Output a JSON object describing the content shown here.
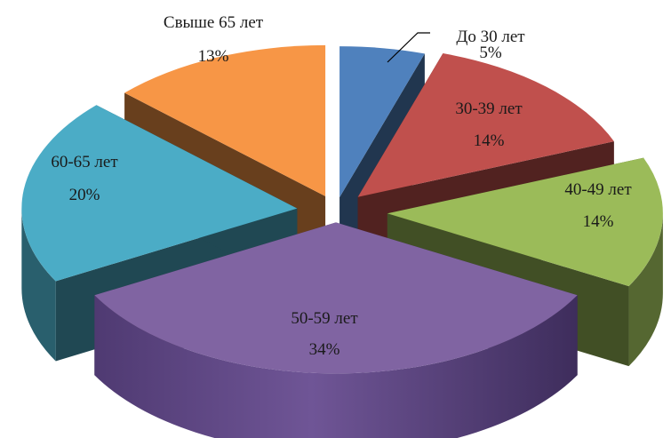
{
  "chart_data": {
    "type": "pie",
    "title": "",
    "categories": [
      "До 30 лет",
      "30-39 лет",
      "40-49 лет",
      "50-59 лет",
      "60-65 лет",
      "Свыше 65 лет"
    ],
    "values": [
      5,
      14,
      14,
      34,
      20,
      13
    ],
    "percent_labels": [
      "5%",
      "14%",
      "14%",
      "34%",
      "20%",
      "13%"
    ],
    "colors": [
      "#4f81bd",
      "#c0504d",
      "#9bbb59",
      "#8064a2",
      "#4bacc6",
      "#f79646"
    ],
    "style": "3d-exploded",
    "legend": "none"
  }
}
